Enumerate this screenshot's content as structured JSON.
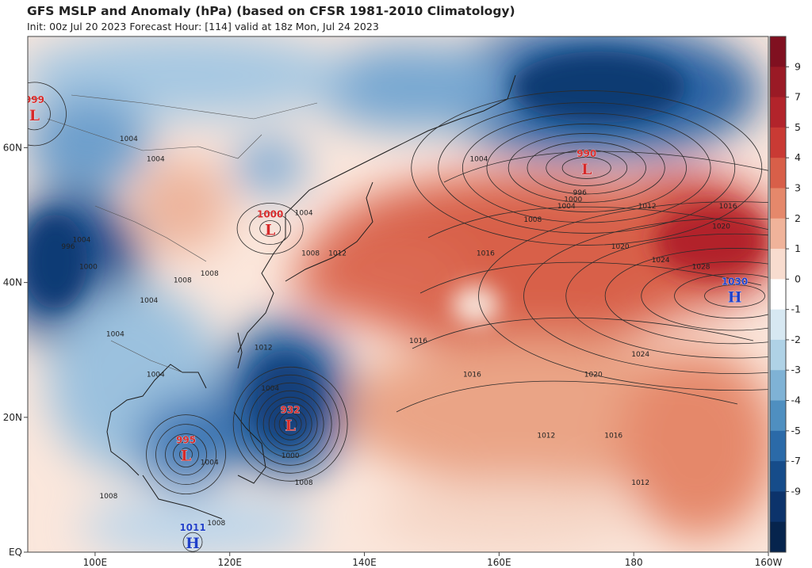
{
  "header": {
    "title": "GFS MSLP and Anomaly (hPa) (based on CFSR 1981-2010 Climatology)",
    "subtitle": "Init: 00z Jul 20 2023   Forecast Hour: [114]   valid at 18z Mon, Jul 24 2023"
  },
  "axes": {
    "lon_labels": [
      "100E",
      "120E",
      "140E",
      "160E",
      "180",
      "160W"
    ],
    "lat_labels": [
      "60N",
      "40N",
      "20N",
      "EQ"
    ]
  },
  "colorbar": {
    "ticks": [
      "9",
      "7",
      "5",
      "4",
      "3",
      "2",
      "1",
      "0",
      "-1",
      "-2",
      "-3",
      "-4",
      "-5",
      "-7",
      "-9"
    ],
    "colors": [
      "#801020",
      "#9a1a25",
      "#b2242b",
      "#c93a34",
      "#d85f49",
      "#e5886b",
      "#f0b39a",
      "#f8dccf",
      "#ffffff",
      "#d7e8f2",
      "#afd2e6",
      "#7fb2d5",
      "#4f8fc0",
      "#2b6aa8",
      "#164c8a",
      "#0c336b",
      "#06244d"
    ]
  },
  "pressure_centers": [
    {
      "type": "L",
      "value": "999",
      "lon": 91,
      "lat": 65,
      "color": "#d62a2a"
    },
    {
      "type": "L",
      "value": "990",
      "lon": 173,
      "lat": 57,
      "color": "#d62a2a"
    },
    {
      "type": "L",
      "value": "1000",
      "lon": 126,
      "lat": 48,
      "color": "#d62a2a"
    },
    {
      "type": "L",
      "value": "932",
      "lon": 129,
      "lat": 19,
      "color": "#d62a2a"
    },
    {
      "type": "L",
      "value": "995",
      "lon": 113.5,
      "lat": 14.5,
      "color": "#d62a2a"
    },
    {
      "type": "H",
      "value": "1030",
      "lon": 195,
      "lat": 38,
      "color": "#1f3fc8"
    },
    {
      "type": "H",
      "value": "1011",
      "lon": 114.5,
      "lat": 1.5,
      "color": "#1f3fc8"
    }
  ],
  "isobar_labels": [
    {
      "text": "1004",
      "lon": 105,
      "lat": 61
    },
    {
      "text": "1004",
      "lon": 109,
      "lat": 58
    },
    {
      "text": "1004",
      "lon": 157,
      "lat": 58
    },
    {
      "text": "1004",
      "lon": 170,
      "lat": 51
    },
    {
      "text": "996",
      "lon": 172,
      "lat": 53
    },
    {
      "text": "1000",
      "lon": 171,
      "lat": 52
    },
    {
      "text": "1012",
      "lon": 182,
      "lat": 51
    },
    {
      "text": "1016",
      "lon": 194,
      "lat": 51
    },
    {
      "text": "1008",
      "lon": 165,
      "lat": 49
    },
    {
      "text": "1020",
      "lon": 193,
      "lat": 48
    },
    {
      "text": "1004",
      "lon": 131,
      "lat": 50
    },
    {
      "text": "1016",
      "lon": 158,
      "lat": 44
    },
    {
      "text": "1020",
      "lon": 178,
      "lat": 45
    },
    {
      "text": "1024",
      "lon": 184,
      "lat": 43
    },
    {
      "text": "1028",
      "lon": 190,
      "lat": 42
    },
    {
      "text": "1008",
      "lon": 132,
      "lat": 44
    },
    {
      "text": "1012",
      "lon": 136,
      "lat": 44
    },
    {
      "text": "1008",
      "lon": 117,
      "lat": 41
    },
    {
      "text": "1008",
      "lon": 113,
      "lat": 40
    },
    {
      "text": "996",
      "lon": 96,
      "lat": 45
    },
    {
      "text": "1004",
      "lon": 98,
      "lat": 46
    },
    {
      "text": "1000",
      "lon": 99,
      "lat": 42
    },
    {
      "text": "1004",
      "lon": 108,
      "lat": 37
    },
    {
      "text": "1004",
      "lon": 103,
      "lat": 32
    },
    {
      "text": "1004",
      "lon": 109,
      "lat": 26
    },
    {
      "text": "1012",
      "lon": 125,
      "lat": 30
    },
    {
      "text": "1016",
      "lon": 148,
      "lat": 31
    },
    {
      "text": "1016",
      "lon": 156,
      "lat": 26
    },
    {
      "text": "1024",
      "lon": 181,
      "lat": 29
    },
    {
      "text": "1020",
      "lon": 174,
      "lat": 26
    },
    {
      "text": "1016",
      "lon": 177,
      "lat": 17
    },
    {
      "text": "1012",
      "lon": 167,
      "lat": 17
    },
    {
      "text": "1012",
      "lon": 181,
      "lat": 10
    },
    {
      "text": "1004",
      "lon": 126,
      "lat": 24
    },
    {
      "text": "1000",
      "lon": 129,
      "lat": 14
    },
    {
      "text": "1004",
      "lon": 117,
      "lat": 13
    },
    {
      "text": "1008",
      "lon": 102,
      "lat": 8
    },
    {
      "text": "1008",
      "lon": 118,
      "lat": 4
    },
    {
      "text": "1008",
      "lon": 131,
      "lat": 10
    }
  ]
}
